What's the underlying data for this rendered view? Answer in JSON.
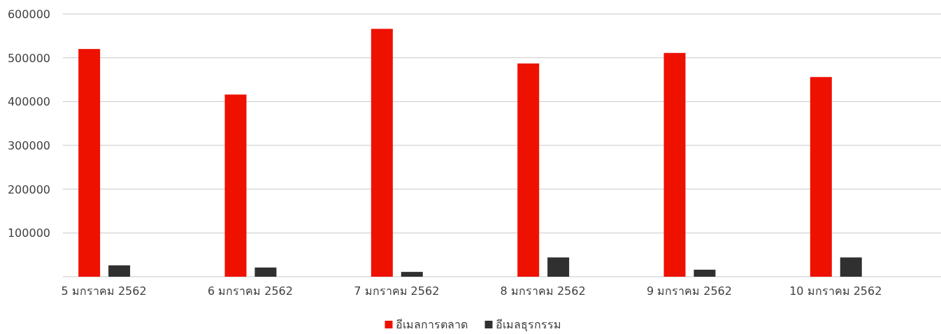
{
  "chart_data": {
    "type": "bar",
    "categories": [
      "5 มกราคม 2562",
      "6 มกราคม 2562",
      "7 มกราคม 2562",
      "8 มกราคม 2562",
      "9 มกราคม 2562",
      "10 มกราคม 2562"
    ],
    "series": [
      {
        "name": "อีเมลการตลาด",
        "color": "#ee1100",
        "values": [
          520000,
          416000,
          566000,
          487000,
          511000,
          456000
        ]
      },
      {
        "name": "อีเมลธุรกรรม",
        "color": "#303030",
        "values": [
          26000,
          21000,
          11000,
          44000,
          16000,
          44000
        ]
      }
    ],
    "ylim": [
      0,
      600000
    ],
    "yticks": [
      100000,
      200000,
      300000,
      400000,
      500000,
      600000
    ],
    "grid": "y",
    "legend": "bottom"
  }
}
